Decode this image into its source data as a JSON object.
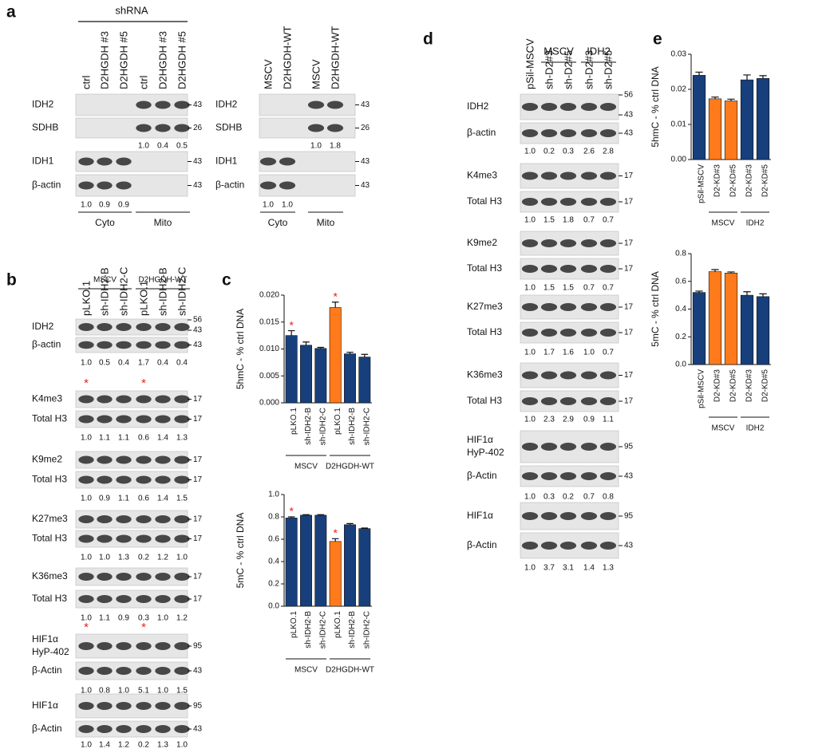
{
  "panel_labels": [
    "a",
    "b",
    "c",
    "d",
    "e"
  ],
  "blots": [
    {
      "header": "shRNA",
      "lanes": [
        "ctrl",
        "D2HGDH #3",
        "D2HGDH #5",
        "ctrl",
        "D2HGDH #3",
        "D2HGDH #5"
      ],
      "rows": [
        {
          "label": "IDH2",
          "mw": [
            "43"
          ]
        },
        {
          "label": "SDHB",
          "mw": [
            "26"
          ]
        },
        {
          "label": "IDH1",
          "mw": [
            "43"
          ]
        },
        {
          "label": "β-actin",
          "mw": [
            "43"
          ]
        }
      ],
      "quant": [
        [
          "1.0",
          "0.4",
          "0.5"
        ],
        [
          "1.0",
          "0.9",
          "0.9"
        ]
      ],
      "fractions": [
        "Cyto",
        "Mito"
      ]
    },
    {
      "lanes": [
        "MSCV",
        "D2HGDH-WT",
        "MSCV",
        "D2HGDH-WT"
      ],
      "rows": [
        {
          "label": "IDH2",
          "mw": [
            "43"
          ]
        },
        {
          "label": "SDHB",
          "mw": [
            "26"
          ]
        },
        {
          "label": "IDH1",
          "mw": [
            "43"
          ]
        },
        {
          "label": "β-actin",
          "mw": [
            "43"
          ]
        }
      ],
      "quant": [
        [
          "1.0",
          "1.8"
        ],
        [
          "1.0",
          "1.0"
        ]
      ],
      "fractions": [
        "Cyto",
        "Mito"
      ]
    },
    {
      "lane_groups": [
        "MSCV",
        "D2HGDH-WT"
      ],
      "lanes": [
        "pLKO.1",
        "sh-IDH2-B",
        "sh-IDH2-C",
        "pLKO.1",
        "sh-IDH2-B",
        "sh-IDH2-C"
      ],
      "rows": [
        {
          "label": "IDH2",
          "mw": [
            "56",
            "43"
          ]
        },
        {
          "label": "β-actin",
          "mw": [
            "43"
          ]
        },
        {
          "label": "K4me3",
          "mw": [
            "17"
          ]
        },
        {
          "label": "Total H3",
          "mw": [
            "17"
          ]
        },
        {
          "label": "K9me2",
          "mw": [
            "17"
          ]
        },
        {
          "label": "Total H3",
          "mw": [
            "17"
          ]
        },
        {
          "label": "K27me3",
          "mw": [
            "17"
          ]
        },
        {
          "label": "Total H3",
          "mw": [
            "17"
          ]
        },
        {
          "label": "K36me3",
          "mw": [
            "17"
          ]
        },
        {
          "label": "Total H3",
          "mw": [
            "17"
          ]
        },
        {
          "label": "HIF1α",
          "sublabel": "HyP-402",
          "mw": [
            "95"
          ]
        },
        {
          "label": "β-Actin",
          "mw": [
            "43"
          ]
        },
        {
          "label": "HIF1α",
          "mw": [
            "95"
          ]
        },
        {
          "label": "β-Actin",
          "mw": [
            "43"
          ]
        }
      ],
      "quant": [
        [
          "1.0",
          "0.5",
          "0.4",
          "1.7",
          "0.4",
          "0.4"
        ],
        [
          "1.0",
          "1.1",
          "1.1",
          "0.6",
          "1.4",
          "1.3"
        ],
        [
          "1.0",
          "0.9",
          "1.1",
          "0.6",
          "1.4",
          "1.5"
        ],
        [
          "1.0",
          "1.0",
          "1.3",
          "0.2",
          "1.2",
          "1.0"
        ],
        [
          "1.0",
          "1.1",
          "0.9",
          "0.3",
          "1.0",
          "1.2"
        ],
        [
          "1.0",
          "0.8",
          "1.0",
          "5.1",
          "1.0",
          "1.5"
        ],
        [
          "1.0",
          "1.4",
          "1.2",
          "0.2",
          "1.3",
          "1.0"
        ]
      ],
      "asterisks": [
        "*",
        "*",
        "*",
        "*"
      ]
    },
    {
      "lane_groups": [
        "MSCV",
        "IDH2"
      ],
      "lanes": [
        "pSil-MSCV",
        "sh-D2#3",
        "sh-D2#5",
        "sh-D2#3",
        "sh-D2#5"
      ],
      "rows": [
        {
          "label": "IDH2",
          "mw": [
            "56",
            "43"
          ]
        },
        {
          "label": "β-actin",
          "mw": [
            "43"
          ]
        },
        {
          "label": "K4me3",
          "mw": [
            "17"
          ]
        },
        {
          "label": "Total H3",
          "mw": [
            "17"
          ]
        },
        {
          "label": "K9me2",
          "mw": [
            "17"
          ]
        },
        {
          "label": "Total H3",
          "mw": [
            "17"
          ]
        },
        {
          "label": "K27me3",
          "mw": [
            "17"
          ]
        },
        {
          "label": "Total H3",
          "mw": [
            "17"
          ]
        },
        {
          "label": "K36me3",
          "mw": [
            "17"
          ]
        },
        {
          "label": "Total H3",
          "mw": [
            "17"
          ]
        },
        {
          "label": "HIF1α",
          "sublabel": "HyP-402",
          "mw": [
            "95"
          ]
        },
        {
          "label": "β-Actin",
          "mw": [
            "43"
          ]
        },
        {
          "label": "HIF1α",
          "mw": [
            "95"
          ]
        },
        {
          "label": "β-Actin",
          "mw": [
            "43"
          ]
        }
      ],
      "quant": [
        [
          "1.0",
          "0.2",
          "0.3",
          "2.6",
          "2.8"
        ],
        [
          "1.0",
          "1.5",
          "1.8",
          "0.7",
          "0.7"
        ],
        [
          "1.0",
          "1.5",
          "1.5",
          "0.7",
          "0.7"
        ],
        [
          "1.0",
          "1.7",
          "1.6",
          "1.0",
          "0.7"
        ],
        [
          "1.0",
          "2.3",
          "2.9",
          "0.9",
          "1.1"
        ],
        [
          "1.0",
          "0.3",
          "0.2",
          "0.7",
          "0.8"
        ],
        [
          "1.0",
          "3.7",
          "3.1",
          "1.4",
          "1.3"
        ]
      ]
    }
  ],
  "chart_data": [
    {
      "type": "bar",
      "ylabel": "5hmC - % ctrl DNA",
      "categories": [
        "pLKO.1",
        "sh-IDH2-B",
        "sh-IDH2-C",
        "pLKO.1",
        "sh-IDH2-B",
        "sh-IDH2-C"
      ],
      "values": [
        0.0125,
        0.0107,
        0.0101,
        0.0177,
        0.0091,
        0.0085
      ],
      "errors": [
        0.0009,
        0.0006,
        0.0002,
        0.001,
        0.0003,
        0.0005
      ],
      "colors": [
        "#173f7c",
        "#173f7c",
        "#173f7c",
        "#ff7a1a",
        "#173f7c",
        "#173f7c"
      ],
      "annotations": [
        "*",
        null,
        null,
        "*",
        null,
        null
      ],
      "group_of": [
        "MSCV",
        "MSCV",
        "MSCV",
        "D2HGDH-WT",
        "D2HGDH-WT",
        "D2HGDH-WT"
      ],
      "ylim": [
        0,
        0.02
      ],
      "yticks": [
        {
          "value": 0,
          "label": "0.000"
        },
        {
          "value": 0.005,
          "label": "0.005"
        },
        {
          "value": 0.01,
          "label": "0.010"
        },
        {
          "value": 0.015,
          "label": "0.015"
        },
        {
          "value": 0.02,
          "label": "0.020"
        }
      ]
    },
    {
      "type": "bar",
      "ylabel": "5mC - % ctrl DNA",
      "categories": [
        "pLKO.1",
        "sh-IDH2-B",
        "sh-IDH2-C",
        "pLKO.1",
        "sh-IDH2-B",
        "sh-IDH2-C"
      ],
      "values": [
        0.79,
        0.815,
        0.815,
        0.58,
        0.73,
        0.695
      ],
      "errors": [
        0.01,
        0.005,
        0.005,
        0.025,
        0.01,
        0.005
      ],
      "colors": [
        "#173f7c",
        "#173f7c",
        "#173f7c",
        "#ff7a1a",
        "#173f7c",
        "#173f7c"
      ],
      "annotations": [
        "*",
        null,
        null,
        "*",
        null,
        null
      ],
      "group_of": [
        "MSCV",
        "MSCV",
        "MSCV",
        "D2HGDH-WT",
        "D2HGDH-WT",
        "D2HGDH-WT"
      ],
      "ylim": [
        0,
        1
      ],
      "yticks": [
        {
          "value": 0,
          "label": "0.0"
        },
        0.2,
        0.4,
        0.6,
        0.8,
        {
          "value": 1,
          "label": "1.0"
        }
      ]
    },
    {
      "type": "bar",
      "ylabel": "5hmC - % ctrl DNA",
      "categories": [
        "pSil-MSCV",
        "D2-KD#3",
        "D2-KD#5",
        "D2-KD#3",
        "D2-KD#5"
      ],
      "values": [
        0.024,
        0.0173,
        0.0167,
        0.0227,
        0.0231
      ],
      "errors": [
        0.0009,
        0.0005,
        0.0005,
        0.0014,
        0.0008
      ],
      "colors": [
        "#173f7c",
        "#ff7a1a",
        "#ff7a1a",
        "#173f7c",
        "#173f7c"
      ],
      "group_of": [
        null,
        "MSCV",
        "MSCV",
        "IDH2",
        "IDH2"
      ],
      "ylim": [
        0,
        0.03
      ],
      "yticks": [
        {
          "value": 0,
          "label": "0.00"
        },
        {
          "value": 0.01,
          "label": "0.01"
        },
        {
          "value": 0.02,
          "label": "0.02"
        },
        {
          "value": 0.03,
          "label": "0.03"
        }
      ]
    },
    {
      "type": "bar",
      "ylabel": "5mC - % ctrl DNA",
      "categories": [
        "pSil-MSCV",
        "D2-KD#3",
        "D2-KD#5",
        "D2-KD#3",
        "D2-KD#5"
      ],
      "values": [
        0.52,
        0.67,
        0.66,
        0.5,
        0.49
      ],
      "errors": [
        0.01,
        0.015,
        0.008,
        0.025,
        0.02
      ],
      "colors": [
        "#173f7c",
        "#ff7a1a",
        "#ff7a1a",
        "#173f7c",
        "#173f7c"
      ],
      "group_of": [
        null,
        "MSCV",
        "MSCV",
        "IDH2",
        "IDH2"
      ],
      "ylim": [
        0,
        0.8
      ],
      "yticks": [
        {
          "value": 0,
          "label": "0.0"
        },
        0.2,
        0.4,
        0.6,
        0.8
      ]
    }
  ]
}
